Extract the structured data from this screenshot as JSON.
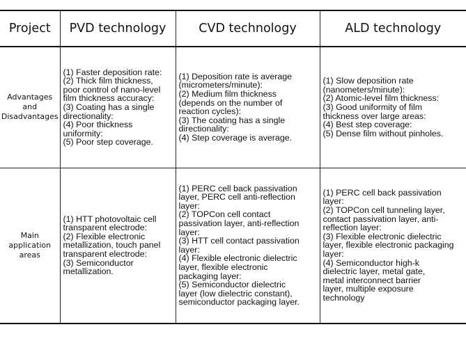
{
  "header": {
    "col0": "Project",
    "col1": "PVD technology",
    "col2": "CVD technology",
    "col3": "ALD technology"
  },
  "rows": [
    {
      "label": "Advantages\nand\nDisadvantages",
      "pvd": [
        "(1) Faster deposition rate:",
        "(2) Thick film thickness,",
        "poor control of nano-level",
        "film thickness accuracy:",
        "(3) Coating has a single",
        "directionality:",
        "(4) Poor thickness",
        "uniformity:",
        "(5) Poor step coverage."
      ],
      "cvd": [
        "(1) Deposition rate is average",
        "(micrometers/minute):",
        "(2) Medium film thickness",
        "(depends on the number of",
        "reaction cycles):",
        "(3) The coating has a single",
        "directionality:",
        "(4) Step coverage is average."
      ],
      "ald": [
        "(1) Slow deposition rate",
        "(nanometers/minute):",
        "(2) Atomic-level film thickness:",
        "(3) Good uniformity of film",
        "thickness over large areas:",
        "(4) Best step coverage:",
        "(5) Dense film without pinholes."
      ]
    },
    {
      "label": "Main\napplication\nareas",
      "pvd": [
        "(1) HTT photovoltaic cell",
        "transparent electrode:",
        "(2) Flexible electronic",
        "metallization, touch panel",
        "transparent electrode:",
        "(3) Semiconductor",
        "metallization."
      ],
      "cvd": [
        "(1) PERC cell back passivation",
        "layer, PERC cell anti-reflection",
        "layer:",
        "(2) TOPCon cell contact",
        "passivation layer, anti-reflection",
        "layer:",
        "(3) HTT cell contact passivation",
        "layer:",
        "(4) Flexible electronic dielectric",
        "layer, flexible electronic",
        "packaging layer:",
        "(5) Semiconductor dielectric",
        "layer (low dielectric constant),",
        "semiconductor packaging layer."
      ],
      "ald": [
        "(1) PERC cell back passivation",
        "layer:",
        "(2) TOPCon cell tunneling layer,",
        "contact passivation layer, anti-",
        "reflection layer:",
        "(3) Flexible electronic dielectric",
        "layer, flexible electronic packaging",
        "layer:",
        "(4) Semiconductor high-k",
        "dielectric layer, metal gate,",
        "metal interconnect barrier",
        "layer, multiple exposure",
        "technology"
      ]
    }
  ]
}
